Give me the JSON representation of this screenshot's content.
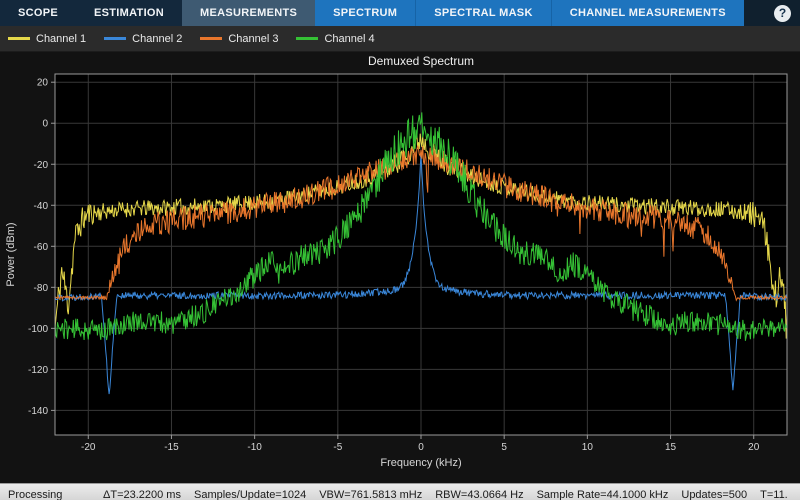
{
  "toolbar": {
    "tabs": [
      {
        "label": "SCOPE",
        "state": "dark"
      },
      {
        "label": "ESTIMATION",
        "state": "dark"
      },
      {
        "label": "MEASUREMENTS",
        "state": "selected"
      },
      {
        "label": "SPECTRUM",
        "state": "blue"
      },
      {
        "label": "SPECTRAL MASK",
        "state": "blue"
      },
      {
        "label": "CHANNEL MEASUREMENTS",
        "state": "blue"
      }
    ],
    "help_label": "?"
  },
  "statusbar": {
    "state": "Processing",
    "items": [
      "ΔT=23.2200 ms",
      "Samples/Update=1024",
      "VBW=761.5813 mHz",
      "RBW=43.0664 Hz",
      "Sample Rate=44.1000 kHz",
      "Updates=500",
      "T=11."
    ]
  },
  "chart_data": {
    "type": "line",
    "title": "Demuxed Spectrum",
    "xlabel": "Frequency (kHz)",
    "ylabel": "Power (dBm)",
    "xlim": [
      -22,
      22
    ],
    "ylim": [
      -152,
      24
    ],
    "xticks": [
      -20,
      -15,
      -10,
      -5,
      0,
      5,
      10,
      15,
      20
    ],
    "yticks": [
      20,
      0,
      -20,
      -40,
      -60,
      -80,
      -100,
      -120,
      -140
    ],
    "grid": true,
    "legend_position": "top-left",
    "plot_bg": "#000000",
    "grid_color": "#383838",
    "axis_color": "#9a9a9a",
    "text_color": "#d6d6d6",
    "series": [
      {
        "name": "Channel 1",
        "color": "#e6d84a",
        "seed": 11,
        "envelope": [
          [
            -22,
            -100
          ],
          [
            -21.6,
            -72
          ],
          [
            -21.2,
            -88
          ],
          [
            -20.8,
            -56
          ],
          [
            -20.4,
            -48
          ],
          [
            -20,
            -44
          ],
          [
            -18,
            -42
          ],
          [
            -15,
            -41
          ],
          [
            -12,
            -40
          ],
          [
            -9,
            -38
          ],
          [
            -7,
            -35
          ],
          [
            -5,
            -31
          ],
          [
            -3,
            -26
          ],
          [
            -2,
            -22
          ],
          [
            -1,
            -17
          ],
          [
            -0.5,
            -12
          ],
          [
            0,
            -7
          ],
          [
            0.5,
            -12
          ],
          [
            1,
            -17
          ],
          [
            2,
            -22
          ],
          [
            3,
            -26
          ],
          [
            5,
            -31
          ],
          [
            7,
            -35
          ],
          [
            9,
            -38
          ],
          [
            12,
            -40
          ],
          [
            15,
            -41
          ],
          [
            18,
            -42
          ],
          [
            20,
            -44
          ],
          [
            20.4,
            -48
          ],
          [
            20.8,
            -56
          ],
          [
            21.2,
            -88
          ],
          [
            21.6,
            -72
          ],
          [
            22,
            -100
          ]
        ],
        "noise": [
          [
            -22,
            9
          ],
          [
            -20.5,
            7
          ],
          [
            -19,
            4
          ],
          [
            -4,
            4
          ],
          [
            -2,
            5
          ],
          [
            0,
            6
          ],
          [
            2,
            5
          ],
          [
            4,
            4
          ],
          [
            19,
            4
          ],
          [
            20.5,
            7
          ],
          [
            22,
            9
          ]
        ]
      },
      {
        "name": "Channel 2",
        "color": "#3a87d9",
        "seed": 22,
        "envelope": [
          [
            -22,
            -85
          ],
          [
            -19.2,
            -84
          ],
          [
            -18.75,
            -133
          ],
          [
            -18.3,
            -84
          ],
          [
            -12,
            -84
          ],
          [
            -6,
            -84
          ],
          [
            -3,
            -83
          ],
          [
            -1.5,
            -81
          ],
          [
            -1,
            -78
          ],
          [
            -0.6,
            -68
          ],
          [
            -0.35,
            -55
          ],
          [
            -0.15,
            -38
          ],
          [
            0,
            -14
          ],
          [
            0.15,
            -38
          ],
          [
            0.35,
            -55
          ],
          [
            0.6,
            -68
          ],
          [
            1,
            -78
          ],
          [
            1.5,
            -81
          ],
          [
            3,
            -83
          ],
          [
            6,
            -84
          ],
          [
            12,
            -84
          ],
          [
            18.3,
            -84
          ],
          [
            18.75,
            -130
          ],
          [
            19.2,
            -84
          ],
          [
            22,
            -85
          ]
        ],
        "noise": [
          [
            -22,
            1.8
          ],
          [
            22,
            1.8
          ]
        ]
      },
      {
        "name": "Channel 3",
        "color": "#e8762c",
        "seed": 33,
        "envelope": [
          [
            -22,
            -85
          ],
          [
            -18.9,
            -85
          ],
          [
            -18.5,
            -74
          ],
          [
            -18,
            -62
          ],
          [
            -17,
            -53
          ],
          [
            -16,
            -49
          ],
          [
            -14,
            -46
          ],
          [
            -12,
            -44
          ],
          [
            -10,
            -41
          ],
          [
            -8,
            -38
          ],
          [
            -6,
            -33
          ],
          [
            -4,
            -27
          ],
          [
            -2.5,
            -22
          ],
          [
            -1.5,
            -19
          ],
          [
            -0.5,
            -16
          ],
          [
            0,
            -15
          ],
          [
            0.5,
            -16
          ],
          [
            1.5,
            -19
          ],
          [
            2.5,
            -22
          ],
          [
            4,
            -27
          ],
          [
            6,
            -33
          ],
          [
            8,
            -38
          ],
          [
            10,
            -41
          ],
          [
            12,
            -44
          ],
          [
            14,
            -46
          ],
          [
            16,
            -49
          ],
          [
            17,
            -53
          ],
          [
            18,
            -62
          ],
          [
            18.5,
            -74
          ],
          [
            18.9,
            -85
          ],
          [
            22,
            -85
          ]
        ],
        "noise": [
          [
            -22,
            0.8
          ],
          [
            -19.2,
            0.8
          ],
          [
            -18.6,
            4
          ],
          [
            -17,
            6
          ],
          [
            -10,
            6
          ],
          [
            0,
            5
          ],
          [
            10,
            6
          ],
          [
            17,
            6
          ],
          [
            18.6,
            4
          ],
          [
            19.2,
            0.8
          ],
          [
            22,
            0.8
          ]
        ],
        "spike": {
          "prob": 0.015,
          "amp": 22,
          "dir": -1
        }
      },
      {
        "name": "Channel 4",
        "color": "#35c135",
        "seed": 44,
        "envelope": [
          [
            -22,
            -100
          ],
          [
            -19,
            -101
          ],
          [
            -17,
            -96
          ],
          [
            -15,
            -98
          ],
          [
            -13,
            -92
          ],
          [
            -12,
            -87
          ],
          [
            -11,
            -82
          ],
          [
            -10,
            -74
          ],
          [
            -9,
            -68
          ],
          [
            -8.5,
            -73
          ],
          [
            -8,
            -70
          ],
          [
            -7,
            -64
          ],
          [
            -6,
            -63
          ],
          [
            -5.5,
            -60
          ],
          [
            -5,
            -56
          ],
          [
            -4.5,
            -51
          ],
          [
            -4,
            -46
          ],
          [
            -3.5,
            -41
          ],
          [
            -3,
            -33
          ],
          [
            -2.5,
            -26
          ],
          [
            -2,
            -19
          ],
          [
            -1.5,
            -13
          ],
          [
            -1,
            -9
          ],
          [
            -0.5,
            -5
          ],
          [
            0,
            -3
          ],
          [
            0.5,
            -5
          ],
          [
            1,
            -9
          ],
          [
            1.5,
            -13
          ],
          [
            2,
            -19
          ],
          [
            2.5,
            -26
          ],
          [
            3,
            -33
          ],
          [
            3.5,
            -41
          ],
          [
            4,
            -46
          ],
          [
            4.5,
            -51
          ],
          [
            5,
            -56
          ],
          [
            5.5,
            -60
          ],
          [
            6,
            -63
          ],
          [
            7,
            -64
          ],
          [
            8,
            -70
          ],
          [
            8.5,
            -73
          ],
          [
            9,
            -68
          ],
          [
            10,
            -74
          ],
          [
            11,
            -82
          ],
          [
            12,
            -87
          ],
          [
            13,
            -92
          ],
          [
            15,
            -98
          ],
          [
            17,
            -96
          ],
          [
            19,
            -101
          ],
          [
            22,
            -100
          ]
        ],
        "noise": [
          [
            -22,
            5
          ],
          [
            -12,
            6
          ],
          [
            -6,
            6
          ],
          [
            -3,
            8
          ],
          [
            -1.5,
            9
          ],
          [
            0,
            9
          ],
          [
            1.5,
            9
          ],
          [
            3,
            8
          ],
          [
            6,
            6
          ],
          [
            12,
            6
          ],
          [
            22,
            5
          ]
        ]
      }
    ]
  }
}
